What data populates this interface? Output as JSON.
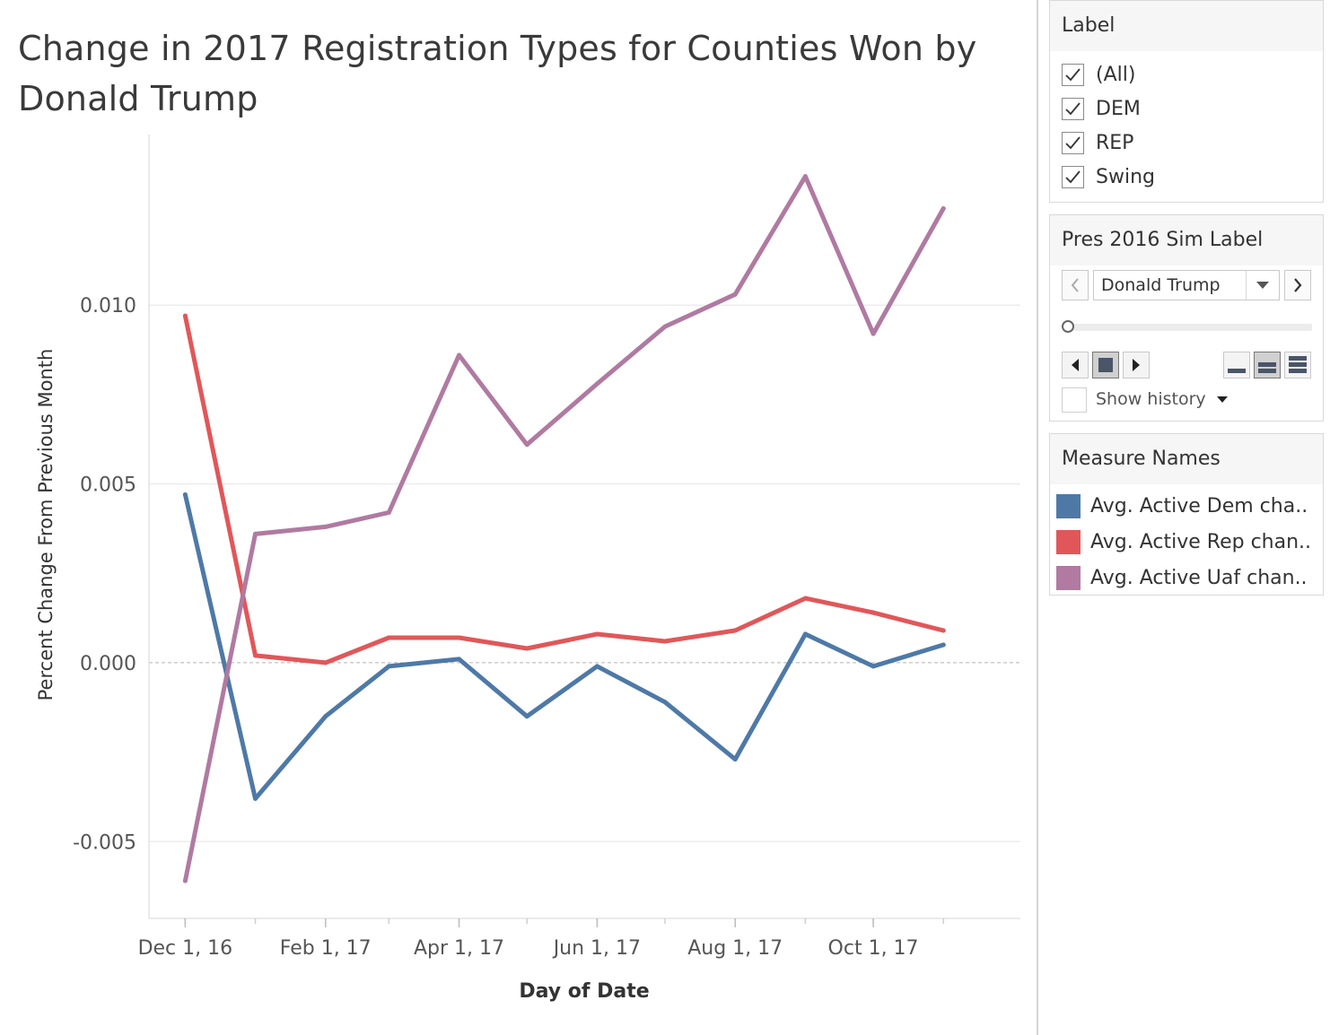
{
  "title": "Change in 2017 Registration Types for Counties Won by Donald Trump",
  "chart_data": {
    "type": "line",
    "x": [
      "2016-12-01",
      "2017-01-01",
      "2017-02-01",
      "2017-03-01",
      "2017-04-01",
      "2017-05-01",
      "2017-06-01",
      "2017-07-01",
      "2017-08-01",
      "2017-09-01",
      "2017-10-01",
      "2017-11-01"
    ],
    "series": [
      {
        "name": "Avg. Active Dem cha..",
        "color": "#4e79a7",
        "values": [
          0.0047,
          -0.0038,
          -0.0015,
          -0.0001,
          0.0001,
          -0.0015,
          -0.0001,
          -0.0011,
          -0.0027,
          0.0008,
          -0.0001,
          0.0005
        ]
      },
      {
        "name": "Avg. Active Rep chan..",
        "color": "#e15759",
        "values": [
          0.0097,
          0.0002,
          0.0,
          0.0007,
          0.0007,
          0.0004,
          0.0008,
          0.0006,
          0.0009,
          0.0018,
          0.0014,
          0.0009
        ]
      },
      {
        "name": "Avg. Active Uaf chan..",
        "color": "#b07aa1",
        "values": [
          -0.0061,
          0.0036,
          0.0038,
          0.0042,
          0.0086,
          0.0061,
          0.0078,
          0.0094,
          0.0103,
          0.0136,
          0.0092,
          0.0127
        ]
      }
    ],
    "xlabel": "Day of Date",
    "ylabel": "Percent Change From Previous Month",
    "x_ticks": [
      "Dec 1, 16",
      "Feb 1, 17",
      "Apr 1, 17",
      "Jun 1, 17",
      "Aug 1, 17",
      "Oct 1, 17"
    ],
    "y_ticks": [
      "-0.005",
      "0.000",
      "0.005",
      "0.010"
    ],
    "y_tick_values": [
      -0.005,
      0.0,
      0.005,
      0.01
    ],
    "ylim": [
      -0.00715,
      0.01477
    ],
    "xlim": [
      "2016-11-15",
      "2017-12-05"
    ],
    "grid": true,
    "zero_line": "dashed"
  },
  "filters": {
    "label_card": {
      "title": "Label",
      "options": [
        {
          "label": "(All)",
          "checked": true
        },
        {
          "label": "DEM",
          "checked": true
        },
        {
          "label": "REP",
          "checked": true
        },
        {
          "label": "Swing",
          "checked": true
        }
      ]
    },
    "pres_card": {
      "title": "Pres 2016 Sim Label",
      "selected": "Donald Trump",
      "slider_position": 0,
      "show_history_label": "Show history",
      "icons": {
        "prev": "chevron-left-icon",
        "next": "chevron-right-icon",
        "dropdown": "caret-down-icon",
        "step_back": "step-back-icon",
        "stop": "stop-icon",
        "step_forward": "step-forward-icon",
        "speed_slow": "speed-slow-icon",
        "speed_medium": "speed-medium-icon",
        "speed_fast": "speed-fast-icon"
      }
    },
    "legend_card": {
      "title": "Measure Names",
      "items": [
        {
          "label": "Avg. Active Dem cha..",
          "color": "#4e79a7"
        },
        {
          "label": "Avg. Active Rep chan..",
          "color": "#e15759"
        },
        {
          "label": "Avg. Active Uaf chan..",
          "color": "#b07aa1"
        }
      ]
    }
  }
}
